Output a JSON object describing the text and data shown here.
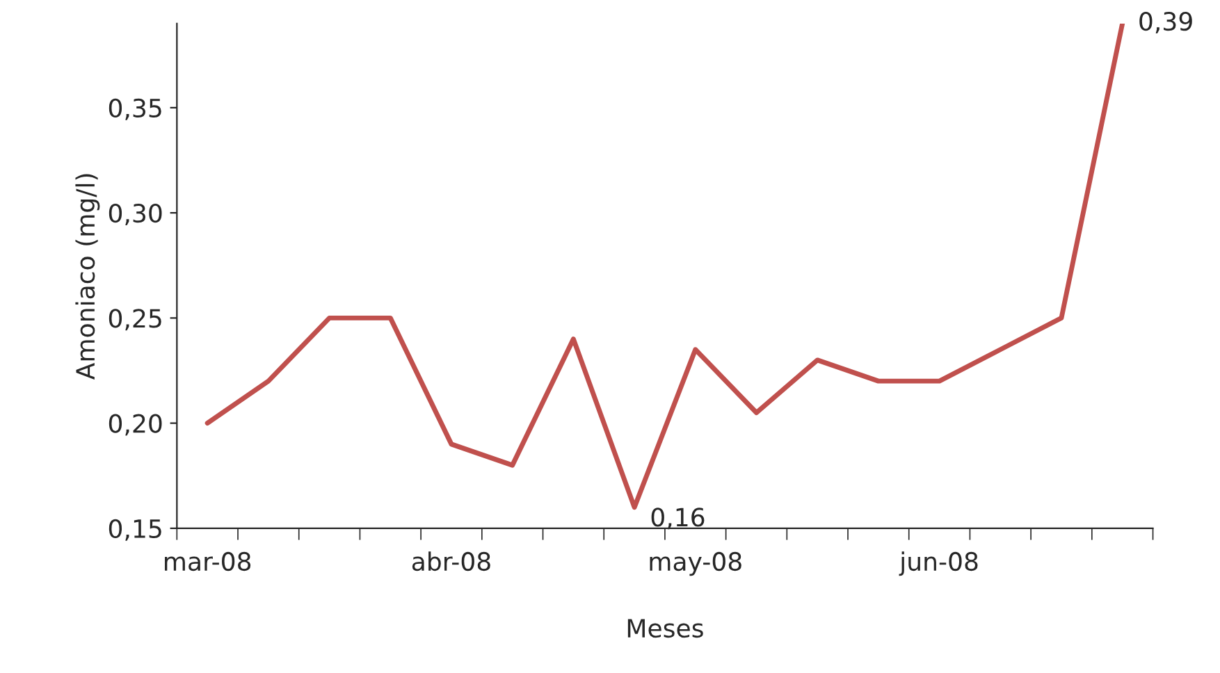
{
  "chart_data": {
    "type": "line",
    "xlabel": "Meses",
    "ylabel": "Amoniaco (mg/l)",
    "categories": [
      "mar-08",
      null,
      null,
      null,
      "abr-08",
      null,
      null,
      null,
      "may-08",
      null,
      null,
      null,
      "jun-08",
      null,
      null,
      null
    ],
    "series": [
      {
        "color": "#c0504d",
        "values": [
          0.2,
          0.22,
          0.25,
          0.25,
          0.19,
          0.18,
          0.24,
          0.16,
          0.235,
          0.205,
          0.23,
          0.22,
          0.22,
          0.235,
          0.25,
          0.39
        ],
        "value_labels": [
          null,
          null,
          null,
          null,
          null,
          null,
          null,
          "0,16",
          null,
          null,
          null,
          null,
          null,
          null,
          null,
          "0,39"
        ]
      }
    ],
    "ylim": [
      0.15,
      0.39
    ],
    "yticks": [
      {
        "value": 0.15,
        "label": "0,15"
      },
      {
        "value": 0.2,
        "label": "0,20"
      },
      {
        "value": 0.25,
        "label": "0,25"
      },
      {
        "value": 0.3,
        "label": "0,30"
      },
      {
        "value": 0.35,
        "label": "0,35"
      }
    ],
    "grid": false,
    "marker": "none",
    "line_style": "solid"
  }
}
